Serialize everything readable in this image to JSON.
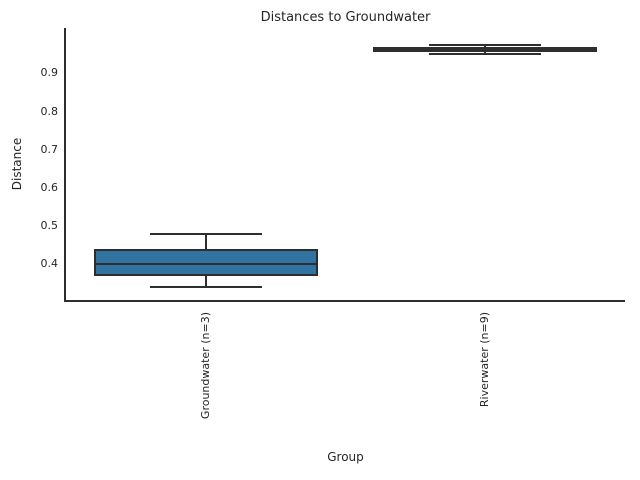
{
  "chart_data": {
    "type": "boxplot",
    "title": "Distances to Groundwater",
    "xlabel": "Group",
    "ylabel": "Distance",
    "ylim": [
      0.306,
      1.019
    ],
    "yticks": [
      0.4,
      0.5,
      0.6,
      0.7,
      0.8,
      0.9
    ],
    "grid": false,
    "legend": null,
    "edge_color": "#2e2e2e",
    "text_color": "#262626",
    "groups": [
      {
        "label": "Groundwater (n=3)",
        "slug": "groundwater",
        "n": 3,
        "color": "#3274A1",
        "stats": {
          "whisker_low": 0.34,
          "q1": 0.37,
          "median": 0.4,
          "q3": 0.44,
          "whisker_high": 0.48
        }
      },
      {
        "label": "Riverwater (n=9)",
        "slug": "riverwater",
        "n": 9,
        "color": "#E1812C",
        "stats": {
          "whisker_low": 0.95,
          "q1": 0.956,
          "median": 0.962,
          "q3": 0.968,
          "whisker_high": 0.974
        }
      }
    ]
  }
}
